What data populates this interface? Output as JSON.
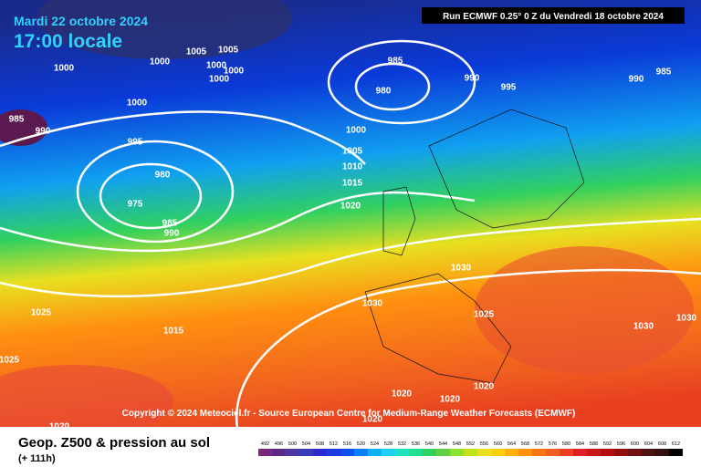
{
  "header": {
    "date": "Mardi 22 octobre 2024",
    "time": "17:00 locale",
    "run": "Run ECMWF 0.25° 0 Z du Vendredi 18 octobre 2024"
  },
  "copyright": "Copyright © 2024 Meteociel.fr - Source European Centre for Medium-Range Weather Forecasts (ECMWF)",
  "footer": {
    "title": "Geop. Z500 & pression au sol",
    "lead": "(+ 111h)"
  },
  "scale": [
    492,
    496,
    500,
    504,
    508,
    512,
    516,
    520,
    524,
    528,
    532,
    536,
    540,
    544,
    548,
    552,
    556,
    560,
    564,
    568,
    572,
    576,
    580,
    584,
    588,
    592,
    596,
    600,
    604,
    608,
    612
  ],
  "isobars": [
    1000,
    1000,
    1005,
    1005,
    1000,
    1000,
    1000,
    985,
    990,
    1000,
    995,
    980,
    975,
    985,
    990,
    985,
    980,
    990,
    995,
    1000,
    1005,
    1010,
    1015,
    1020,
    985,
    990,
    1030,
    1030,
    1025,
    1030,
    1030,
    1025,
    1015,
    1025,
    1020,
    1020,
    1020,
    1020,
    1020
  ]
}
